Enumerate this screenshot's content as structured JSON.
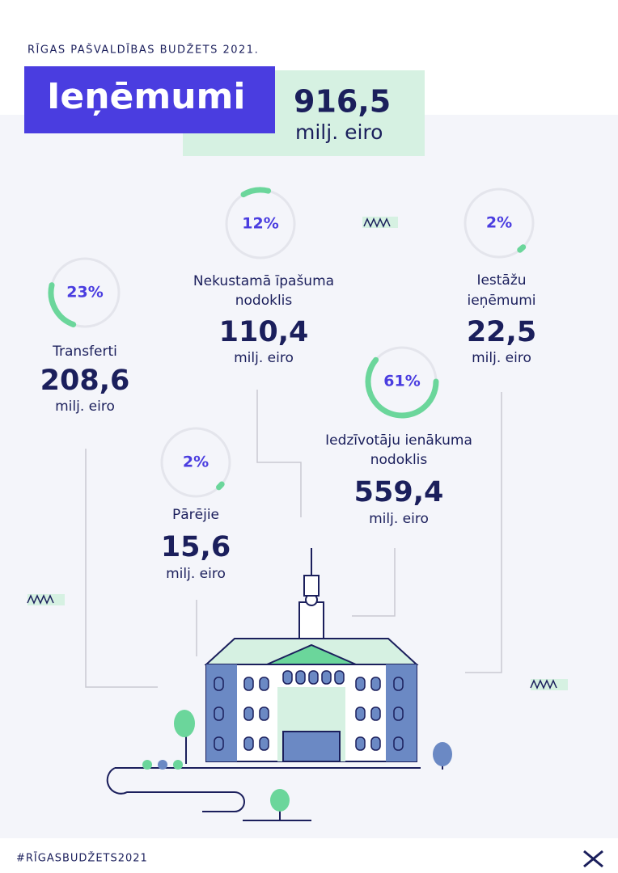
{
  "header": {
    "subtitle": "RĪGAS PAŠVALDĪBAS BUDŽETS 2021.",
    "title": "Ieņēmumi",
    "total": "916,5",
    "total_unit": "milj. eiro"
  },
  "items": [
    {
      "share": {
        "value": 23,
        "label": "23%"
      },
      "label_lines": [
        "Transferti"
      ],
      "amount": "208,6",
      "unit": "milj. eiro"
    },
    {
      "share": {
        "value": 12,
        "label": "12%"
      },
      "label_lines": [
        "Nekustamā īpašuma",
        "nodoklis"
      ],
      "amount": "110,4",
      "unit": "milj. eiro"
    },
    {
      "share": {
        "value": 2,
        "label": "2%"
      },
      "label_lines": [
        "Iestāžu",
        "ieņēmumi"
      ],
      "amount": "22,5",
      "unit": "milj. eiro"
    },
    {
      "share": {
        "value": 61,
        "label": "61%"
      },
      "label_lines": [
        "Iedzīvotāju ienākuma",
        "nodoklis"
      ],
      "amount": "559,4",
      "unit": "milj. eiro"
    },
    {
      "share": {
        "value": 2,
        "label": "2%"
      },
      "label_lines": [
        "Pārējie"
      ],
      "amount": "15,6",
      "unit": "milj. eiro"
    }
  ],
  "footer": {
    "hashtag": "#RĪGASBUDŽETS2021"
  }
}
